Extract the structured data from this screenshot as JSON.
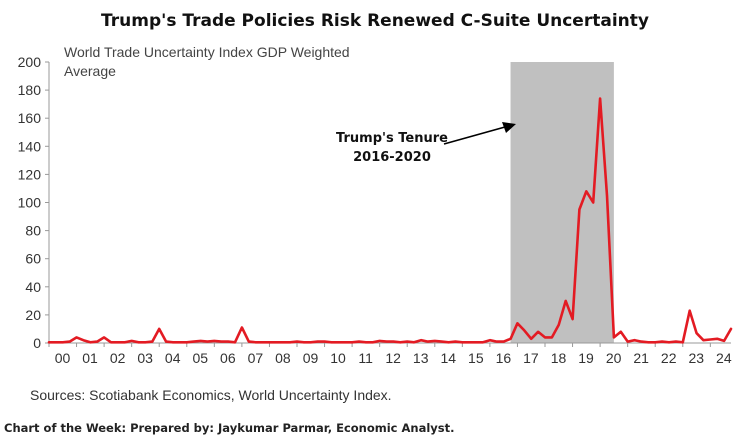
{
  "chart_data": {
    "type": "line",
    "title": "Trump's Trade Policies Risk Renewed C-Suite Uncertainty",
    "series_title_lines": [
      "World Trade Uncertainty Index GDP Weighted",
      "Average"
    ],
    "xlabel": "",
    "ylabel": "",
    "ylim": [
      0,
      200
    ],
    "yticks": [
      "0",
      "20",
      "40",
      "60",
      "80",
      "100",
      "120",
      "140",
      "160",
      "180",
      "200"
    ],
    "xticks": [
      "00",
      "01",
      "02",
      "03",
      "04",
      "05",
      "06",
      "07",
      "08",
      "09",
      "10",
      "11",
      "12",
      "13",
      "14",
      "15",
      "16",
      "17",
      "18",
      "19",
      "20",
      "21",
      "22",
      "23",
      "24"
    ],
    "xlim": [
      2000.0,
      2024.75
    ],
    "grid": false,
    "shaded_region": {
      "x_start": 2016.75,
      "x_end": 2020.5,
      "color": "#c0c0c0"
    },
    "annotation_lines": [
      "Trump's Tenure",
      "2016-2020"
    ],
    "series": [
      {
        "name": "World Trade Uncertainty Index GDP Weighted Average",
        "color": "#e31b23",
        "x": [
          2000.0,
          2000.25,
          2000.5,
          2000.75,
          2001.0,
          2001.25,
          2001.5,
          2001.75,
          2002.0,
          2002.25,
          2002.5,
          2002.75,
          2003.0,
          2003.25,
          2003.5,
          2003.75,
          2004.0,
          2004.25,
          2004.5,
          2004.75,
          2005.0,
          2005.25,
          2005.5,
          2005.75,
          2006.0,
          2006.25,
          2006.5,
          2006.75,
          2007.0,
          2007.25,
          2007.5,
          2007.75,
          2008.0,
          2008.25,
          2008.5,
          2008.75,
          2009.0,
          2009.25,
          2009.5,
          2009.75,
          2010.0,
          2010.25,
          2010.5,
          2010.75,
          2011.0,
          2011.25,
          2011.5,
          2011.75,
          2012.0,
          2012.25,
          2012.5,
          2012.75,
          2013.0,
          2013.25,
          2013.5,
          2013.75,
          2014.0,
          2014.25,
          2014.5,
          2014.75,
          2015.0,
          2015.25,
          2015.5,
          2015.75,
          2016.0,
          2016.25,
          2016.5,
          2016.75,
          2017.0,
          2017.25,
          2017.5,
          2017.75,
          2018.0,
          2018.25,
          2018.5,
          2018.75,
          2019.0,
          2019.25,
          2019.5,
          2019.75,
          2020.0,
          2020.25,
          2020.5,
          2020.75,
          2021.0,
          2021.25,
          2021.5,
          2021.75,
          2022.0,
          2022.25,
          2022.5,
          2022.75,
          2023.0,
          2023.25,
          2023.5,
          2023.75,
          2024.0,
          2024.25,
          2024.5,
          2024.75
        ],
        "values": [
          0.5,
          0.5,
          0.5,
          1,
          4,
          2,
          0.5,
          1,
          4,
          0.5,
          0.5,
          0.5,
          1.5,
          0.5,
          0.5,
          1,
          10,
          1,
          0.5,
          0.5,
          0.5,
          1,
          1.5,
          1,
          1.5,
          1,
          1,
          0.5,
          11,
          1,
          0.5,
          0.5,
          0.5,
          0.5,
          0.5,
          0.5,
          1,
          0.5,
          0.5,
          1,
          1,
          0.5,
          0.5,
          0.5,
          0.5,
          1,
          0.5,
          0.5,
          1.5,
          1,
          1,
          0.5,
          1,
          0.5,
          2,
          1,
          1.5,
          1,
          0.5,
          1,
          0.5,
          0.5,
          0.5,
          0.5,
          2,
          1,
          1,
          3,
          14,
          9,
          3,
          8,
          4,
          4,
          13,
          30,
          17,
          95,
          108,
          100,
          174,
          105,
          4,
          8,
          1,
          2,
          1,
          0.5,
          0.5,
          1,
          0.5,
          1,
          0.5,
          23,
          7,
          2,
          2.5,
          3,
          1.5,
          10
        ]
      }
    ]
  },
  "source_text": "Sources: Scotiabank Economics, World Uncertainty Index.",
  "footer_text": "Chart of the Week: Prepared by: Jaykumar Parmar, Economic Analyst."
}
